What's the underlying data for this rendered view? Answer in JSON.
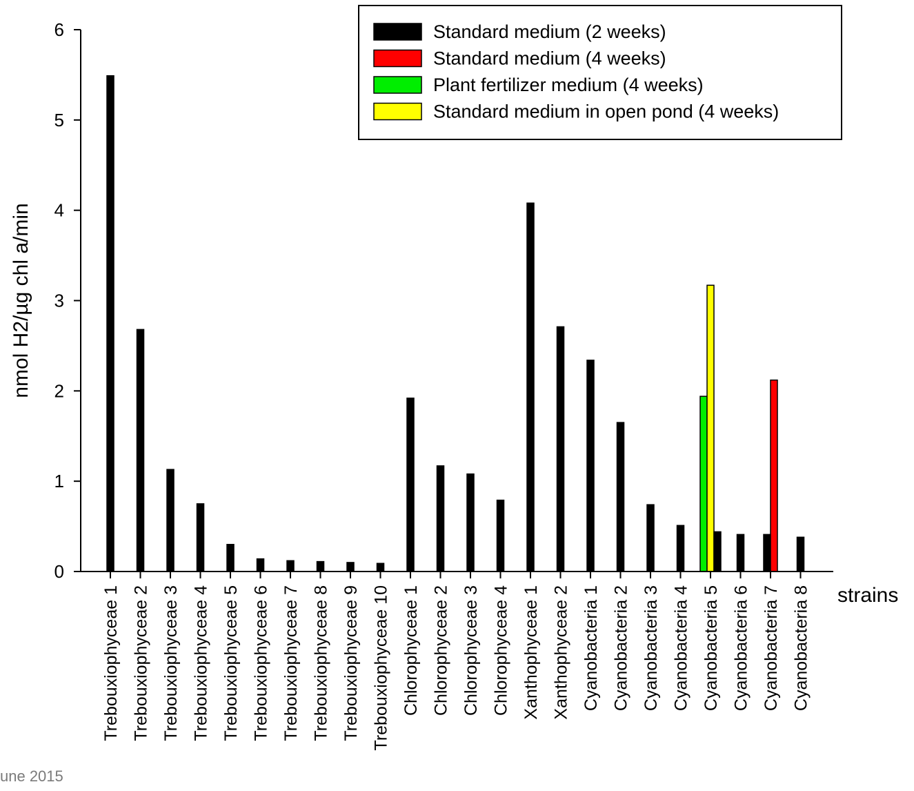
{
  "footer": {
    "text": "une 2015"
  },
  "chart_data": {
    "type": "bar",
    "title": "",
    "xlabel": "strains",
    "ylabel": "nmol H2/µg chl a/min",
    "ylim": [
      0,
      6
    ],
    "yticks": [
      0,
      1,
      2,
      3,
      4,
      5,
      6
    ],
    "legend_position": "top-right",
    "grid": false,
    "categories": [
      "Trebouxiophyceae 1",
      "Trebouxiophyceae 2",
      "Trebouxiophyceae 3",
      "Trebouxiophyceae 4",
      "Trebouxiophyceae 5",
      "Trebouxiophyceae 6",
      "Trebouxiophyceae 7",
      "Trebouxiophyceae 8",
      "Trebouxiophyceae 9",
      "Trebouxiophyceae 10",
      "Chlorophyceae 1",
      "Chlorophyceae 2",
      "Chlorophyceae 3",
      "Chlorophyceae 4",
      "Xanthophyceae 1",
      "Xanthophyceae 2",
      "Cyanobacteria 1",
      "Cyanobacteria 2",
      "Cyanobacteria 3",
      "Cyanobacteria 4",
      "Cyanobacteria 5",
      "Cyanobacteria 6",
      "Cyanobacteria 7",
      "Cyanobacteria 8"
    ],
    "series": [
      {
        "name": "Standard medium (2 weeks)",
        "color": "#000000",
        "values": [
          5.49,
          2.68,
          1.13,
          0.75,
          0.3,
          0.14,
          0.12,
          0.11,
          0.1,
          0.09,
          1.92,
          1.17,
          1.08,
          0.79,
          4.08,
          2.71,
          2.34,
          1.65,
          0.74,
          0.51,
          0.44,
          0.41,
          0.41,
          0.38
        ]
      },
      {
        "name": "Standard medium (4 weeks)",
        "color": "#ff0000",
        "values": [
          null,
          null,
          null,
          null,
          null,
          null,
          null,
          null,
          null,
          null,
          null,
          null,
          null,
          null,
          null,
          null,
          null,
          null,
          null,
          null,
          null,
          null,
          2.12,
          null
        ]
      },
      {
        "name": "Plant fertilizer medium (4 weeks)",
        "color": "#00ee00",
        "values": [
          null,
          null,
          null,
          null,
          null,
          null,
          null,
          null,
          null,
          null,
          null,
          null,
          null,
          null,
          null,
          null,
          null,
          null,
          null,
          null,
          1.94,
          null,
          null,
          null
        ]
      },
      {
        "name": "Standard medium in open pond (4 weeks)",
        "color": "#ffff00",
        "values": [
          null,
          null,
          null,
          null,
          null,
          null,
          null,
          null,
          null,
          null,
          null,
          null,
          null,
          null,
          null,
          null,
          null,
          null,
          null,
          null,
          3.17,
          null,
          null,
          null
        ]
      }
    ]
  }
}
